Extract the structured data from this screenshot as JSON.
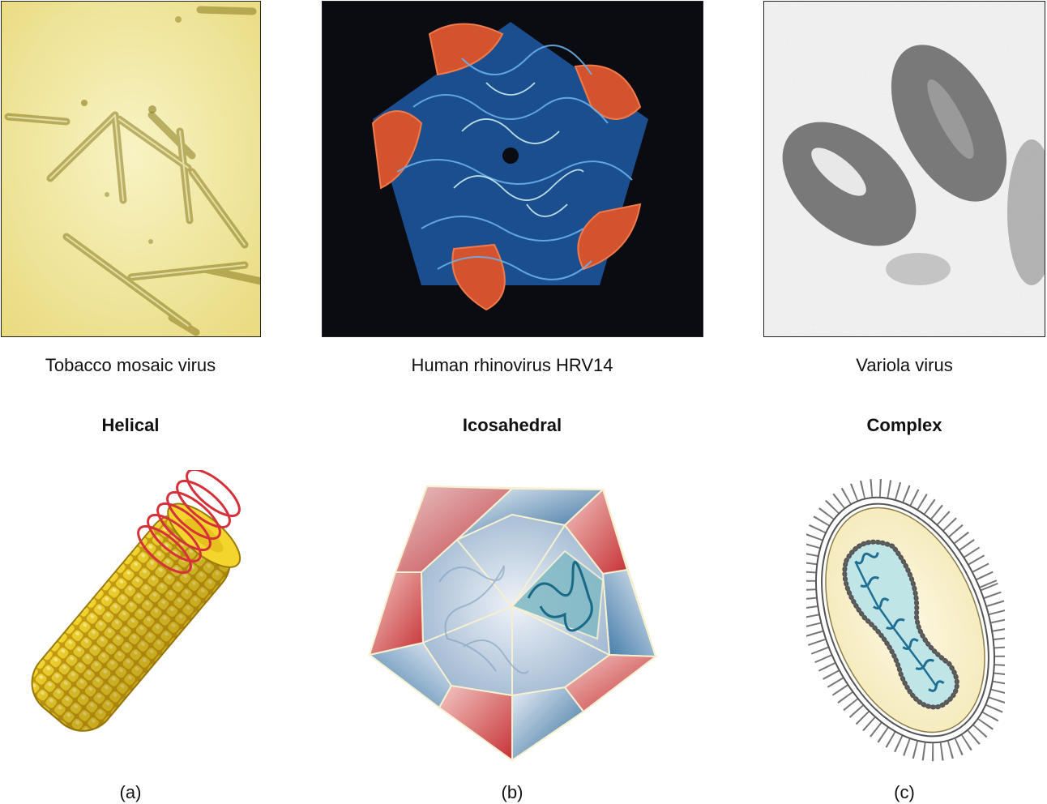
{
  "figure": {
    "columns": [
      {
        "key": "a",
        "virus": "Tobacco mosaic virus",
        "shape_type": "Helical",
        "letter": "(a)"
      },
      {
        "key": "b",
        "virus": "Human rhinovirus HRV14",
        "shape_type": "Icosahedral",
        "letter": "(b)"
      },
      {
        "key": "c",
        "virus": "Variola virus",
        "shape_type": "Complex",
        "letter": "(c)"
      }
    ]
  },
  "colors": {
    "tmv_background": "#f3eca6",
    "rhino_background": "#0b0b12",
    "rhino_blue": "#2f7ac8",
    "rhino_red": "#d2532e",
    "variola_gray": "#6c6c6c",
    "capsomere_yellow": "#f2d12c",
    "helix_red": "#d6303a",
    "icosa_blue": "#5d86ad",
    "icosa_red": "#cc3b3b",
    "envelope_cream": "#fbf3cf",
    "core_teal": "#bfe5e6"
  }
}
